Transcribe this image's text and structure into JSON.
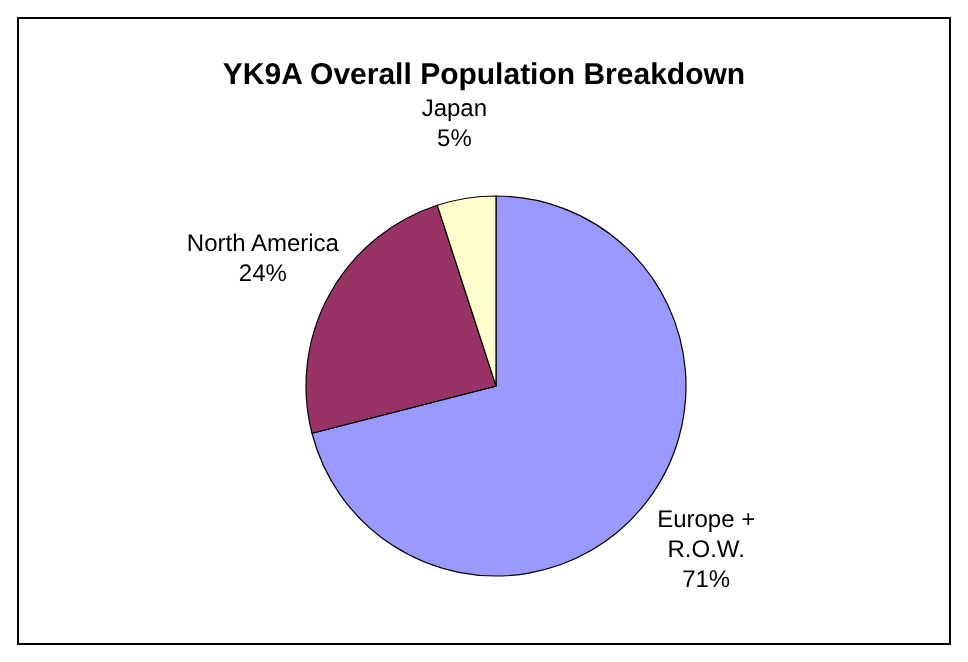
{
  "chart_data": {
    "type": "pie",
    "title": "YK9A Overall Population Breakdown",
    "categories": [
      "Europe + R.O.W.",
      "North America",
      "Japan"
    ],
    "values": [
      71,
      24,
      5
    ],
    "colors": [
      "#9999ff",
      "#993366",
      "#ffffcc"
    ],
    "value_labels": [
      "71%",
      "24%",
      "5%"
    ],
    "legend": false
  }
}
